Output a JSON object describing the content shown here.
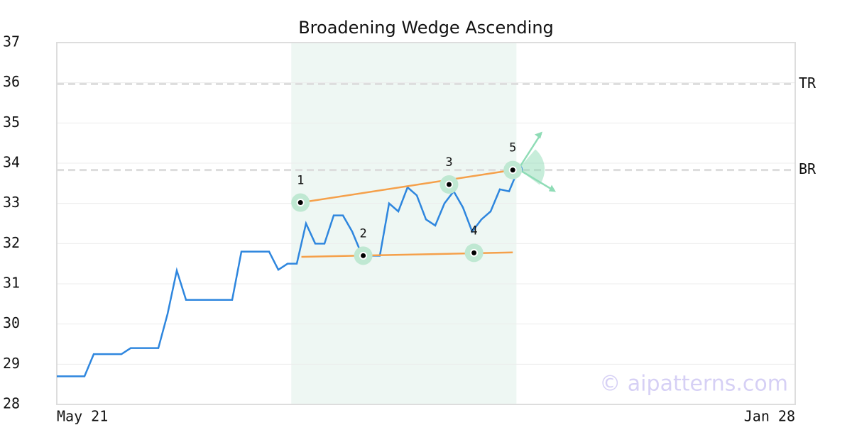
{
  "chart_data": {
    "type": "line",
    "title": "Broadening Wedge Ascending",
    "watermark": "© aipatterns.com",
    "categories": [
      "May 21",
      null,
      null,
      null,
      null,
      null,
      null,
      null,
      null,
      null,
      null,
      null,
      null,
      null,
      null,
      null,
      null,
      null,
      null,
      null,
      null,
      null,
      null,
      null,
      null,
      null,
      null,
      null,
      null,
      null,
      null,
      null,
      null,
      null,
      null,
      null,
      null,
      null,
      null,
      null,
      null,
      null,
      null,
      null,
      null,
      null,
      null,
      null,
      null,
      null,
      null,
      null,
      null,
      null,
      null,
      null,
      null,
      null,
      null,
      null,
      null,
      null,
      null,
      null,
      null,
      null,
      null,
      null,
      null,
      null,
      null,
      null,
      null,
      null,
      null,
      null,
      null,
      null,
      null,
      null,
      "Jan 28"
    ],
    "values": [
      28.7,
      28.7,
      28.7,
      28.7,
      29.25,
      29.25,
      29.25,
      29.25,
      29.4,
      29.4,
      29.4,
      29.4,
      30.25,
      31.33,
      30.6,
      30.6,
      30.6,
      30.6,
      30.6,
      30.6,
      31.8,
      31.8,
      31.8,
      31.8,
      31.35,
      31.5,
      31.5,
      32.5,
      32.0,
      32.0,
      32.7,
      32.7,
      32.3,
      31.75,
      31.7,
      31.7,
      33.0,
      32.8,
      33.4,
      33.2,
      32.6,
      32.45,
      33.0,
      33.3,
      32.9,
      32.3,
      32.6,
      32.8,
      33.35,
      33.3,
      33.85,
      null,
      null,
      null,
      null,
      null,
      null,
      null,
      null,
      null,
      null,
      null,
      null,
      null,
      null,
      null,
      null,
      null,
      null,
      null,
      null,
      null,
      null,
      null,
      null,
      null,
      null,
      null,
      null,
      null,
      null
    ],
    "color": "#2e86de",
    "ylim": [
      28,
      37
    ],
    "yticks": [
      28,
      29,
      30,
      31,
      32,
      33,
      34,
      35,
      36,
      37
    ],
    "grid": true,
    "highlight": [
      25.4,
      49.8
    ],
    "pattern_points": [
      {
        "label": "1",
        "x": 26.4,
        "value": 33.02
      },
      {
        "label": "2",
        "x": 33.2,
        "value": 31.7
      },
      {
        "label": "3",
        "x": 42.5,
        "value": 33.47
      },
      {
        "label": "4",
        "x": 45.2,
        "value": 31.77
      },
      {
        "label": "5",
        "x": 49.4,
        "value": 33.83
      }
    ],
    "trendlines": [
      {
        "color": "#f5a04a",
        "x": [
          26.4,
          49.4
        ],
        "values": [
          33.02,
          33.83
        ]
      },
      {
        "color": "#f5a04a",
        "x": [
          26.5,
          49.4
        ],
        "values": [
          31.67,
          31.78
        ]
      }
    ],
    "reference_lines": [
      {
        "label": "TR",
        "value": 35.97
      },
      {
        "label": "BR",
        "value": 33.83
      }
    ]
  }
}
